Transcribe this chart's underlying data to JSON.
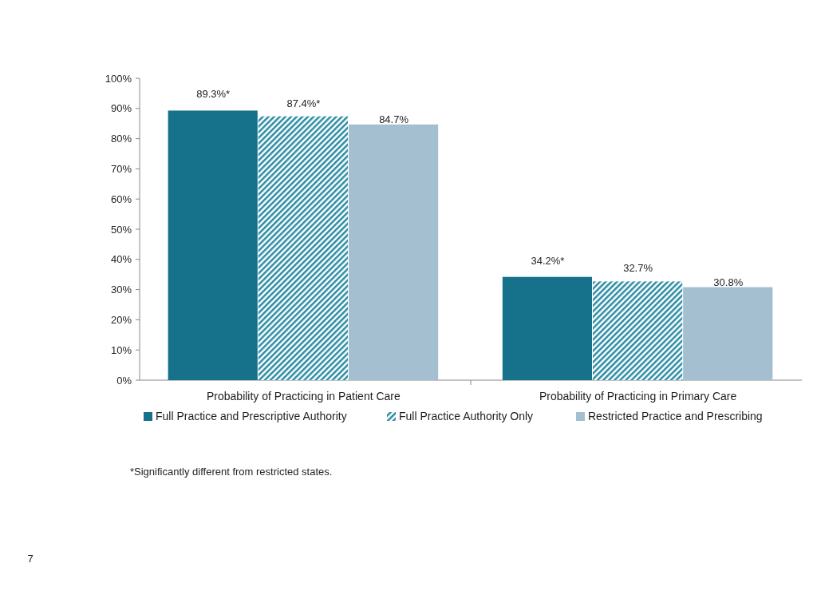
{
  "chart_data": {
    "type": "bar",
    "categories": [
      "Probability of Practicing in Patient Care",
      "Probability of Practicing in Primary Care"
    ],
    "series": [
      {
        "name": "Full Practice and Prescriptive Authority",
        "color": "#16718a",
        "values": [
          89.3,
          34.2
        ],
        "value_labels": [
          "89.3%*",
          "34.2%*"
        ]
      },
      {
        "name": "Full Practice Authority Only",
        "color": "#2a8ba3",
        "values": [
          87.4,
          32.7
        ],
        "value_labels": [
          "87.4%*",
          "32.7%"
        ]
      },
      {
        "name": "Restricted Practice and Prescribing",
        "color": "#a3bfd0",
        "values": [
          84.7,
          30.8
        ],
        "value_labels": [
          "84.7%",
          "30.8%"
        ]
      }
    ],
    "ylim": [
      0,
      100
    ],
    "yticks": [
      {
        "value": 0,
        "label": "0%"
      },
      {
        "value": 10,
        "label": "10%"
      },
      {
        "value": 20,
        "label": "20%"
      },
      {
        "value": 30,
        "label": "30%"
      },
      {
        "value": 40,
        "label": "40%"
      },
      {
        "value": 50,
        "label": "50%"
      },
      {
        "value": 60,
        "label": "60%"
      },
      {
        "value": 70,
        "label": "70%"
      },
      {
        "value": 80,
        "label": "80%"
      },
      {
        "value": 90,
        "label": "90%"
      },
      {
        "value": 100,
        "label": "100%"
      }
    ],
    "grid": false,
    "legend": "bottom",
    "annotations": [
      "*Significantly different from restricted states.",
      "7"
    ]
  }
}
